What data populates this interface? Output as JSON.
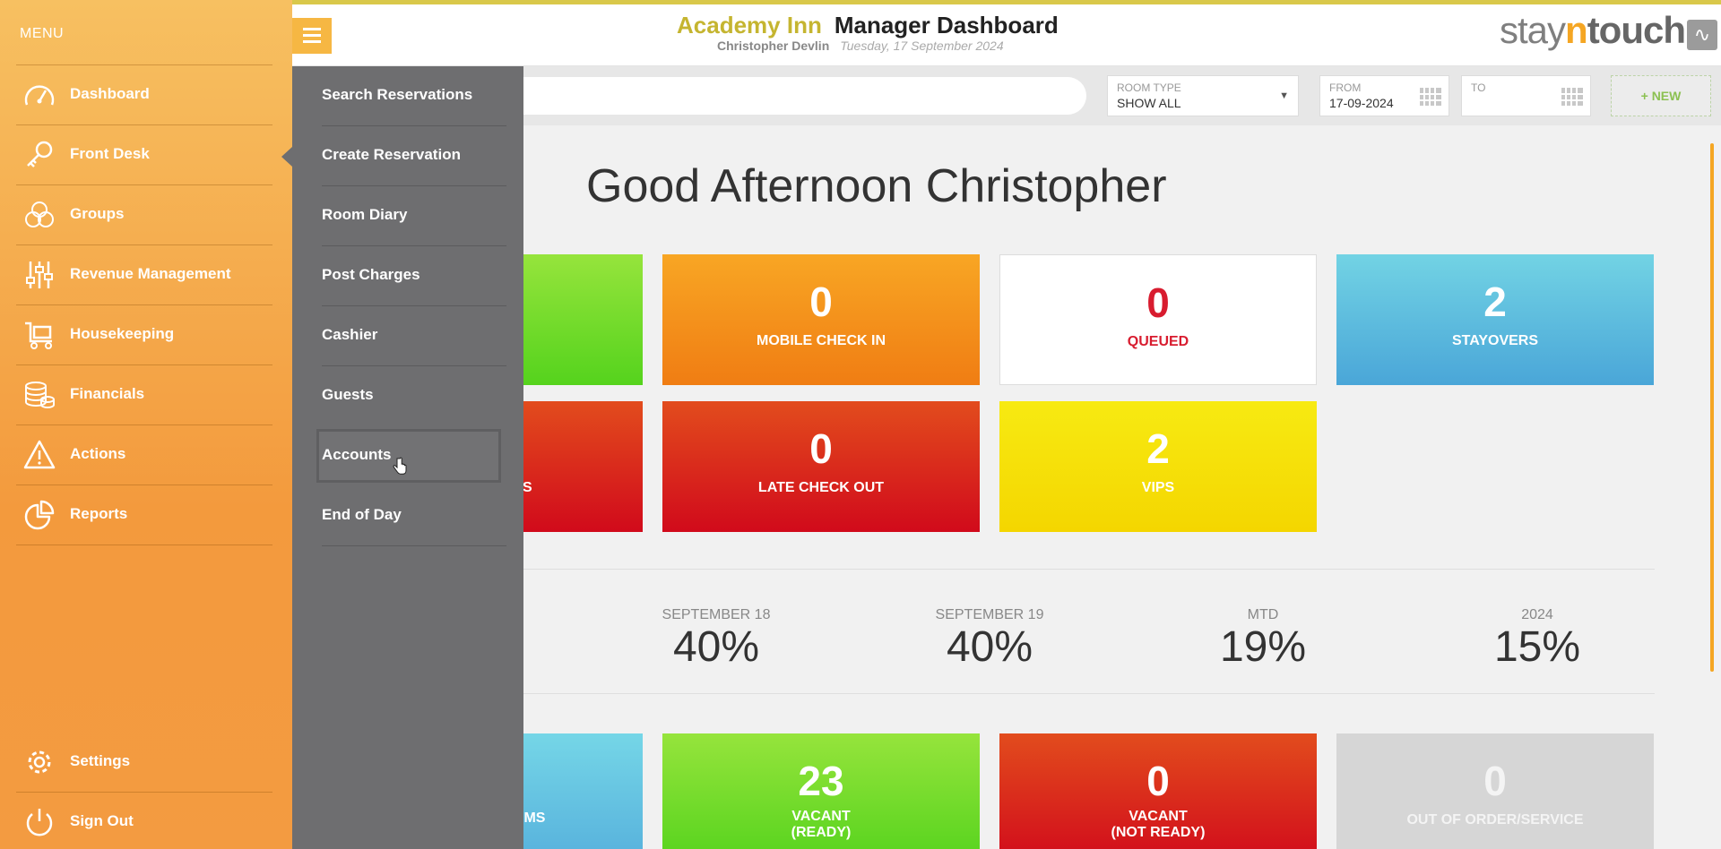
{
  "header": {
    "hotel_name": "Academy Inn",
    "page_title": "Manager Dashboard",
    "user_name": "Christopher Devlin",
    "date": "Tuesday, 17 September 2024",
    "brand": {
      "p1": "stay",
      "p2": "n",
      "p3": "touch"
    }
  },
  "filters": {
    "search_placeholder": "",
    "room_type_label": "ROOM TYPE",
    "room_type_value": "SHOW ALL",
    "from_label": "FROM",
    "from_value": "17-09-2024",
    "to_label": "TO",
    "to_value": "",
    "new_button": "+ NEW"
  },
  "main": {
    "greeting": "Good Afternoon Christopher",
    "tiles_row1": [
      {
        "num": "",
        "label": ""
      },
      {
        "num": "0",
        "label": "MOBILE CHECK IN"
      },
      {
        "num": "0",
        "label": "QUEUED"
      },
      {
        "num": "2",
        "label": "STAYOVERS"
      }
    ],
    "tiles_row2": [
      {
        "num": "",
        "label": "S"
      },
      {
        "num": "0",
        "label": "LATE CHECK OUT"
      },
      {
        "num": "2",
        "label": "VIPS"
      }
    ],
    "occupancy": [
      {
        "label": "SEPTEMBER 18",
        "value": "40%"
      },
      {
        "label": "SEPTEMBER 19",
        "value": "40%"
      },
      {
        "label": "MTD",
        "value": "19%"
      },
      {
        "label": "2024",
        "value": "15%"
      }
    ],
    "tiles_row3": [
      {
        "num": "",
        "label": "OMS"
      },
      {
        "num": "23",
        "label1": "VACANT",
        "label2": "(READY)"
      },
      {
        "num": "0",
        "label1": "VACANT",
        "label2": "(NOT READY)"
      },
      {
        "num": "0",
        "label": "OUT OF ORDER/SERVICE"
      }
    ]
  },
  "sidebar": {
    "title": "MENU",
    "items": [
      {
        "label": "Dashboard",
        "icon": "gauge-icon"
      },
      {
        "label": "Front Desk",
        "icon": "key-icon"
      },
      {
        "label": "Groups",
        "icon": "groups-icon"
      },
      {
        "label": "Revenue Management",
        "icon": "sliders-icon"
      },
      {
        "label": "Housekeeping",
        "icon": "cart-icon"
      },
      {
        "label": "Financials",
        "icon": "coins-icon"
      },
      {
        "label": "Actions",
        "icon": "warning-icon"
      },
      {
        "label": "Reports",
        "icon": "pie-chart-icon"
      }
    ],
    "bottom_items": [
      {
        "label": "Settings",
        "icon": "gear-icon"
      },
      {
        "label": "Sign Out",
        "icon": "power-icon"
      }
    ]
  },
  "submenu": {
    "items": [
      "Search Reservations",
      "Create Reservation",
      "Room Diary",
      "Post Charges",
      "Cashier",
      "Guests",
      "Accounts",
      "End of Day"
    ],
    "hovered": "Accounts"
  }
}
